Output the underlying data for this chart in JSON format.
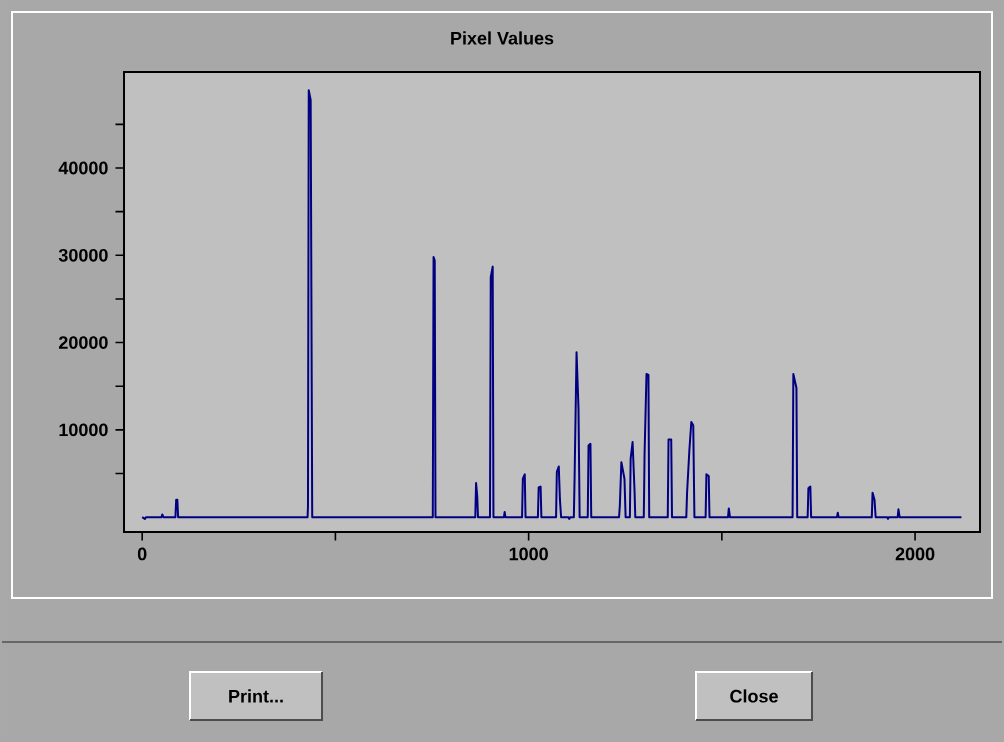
{
  "chart_data": {
    "type": "line",
    "title": "Pixel Values",
    "x": [
      0,
      7,
      10,
      50,
      52,
      55,
      86,
      88,
      91,
      93,
      428,
      429,
      431,
      436,
      440,
      752,
      754,
      757,
      759,
      862,
      864,
      867,
      869,
      900,
      902,
      907,
      909,
      936,
      938,
      940,
      983,
      985,
      990,
      992,
      1024,
      1026,
      1031,
      1033,
      1071,
      1073,
      1078,
      1081,
      1084,
      1103,
      1105,
      1108,
      1117,
      1119,
      1124,
      1129,
      1132,
      1153,
      1155,
      1160,
      1162,
      1234,
      1236,
      1240,
      1248,
      1251,
      1262,
      1264,
      1269,
      1274,
      1276,
      1298,
      1300,
      1305,
      1310,
      1312,
      1360,
      1362,
      1369,
      1371,
      1408,
      1410,
      1416,
      1421,
      1426,
      1429,
      1458,
      1460,
      1466,
      1468,
      1516,
      1518,
      1521,
      1683,
      1685,
      1693,
      1695,
      1722,
      1724,
      1729,
      1731,
      1798,
      1800,
      1802,
      1888,
      1890,
      1895,
      1898,
      1928,
      1930,
      1932,
      1955,
      1957,
      1960,
      2120
    ],
    "values": [
      0,
      -200,
      0,
      0,
      300,
      0,
      0,
      2000,
      2000,
      0,
      0,
      1200,
      48900,
      47800,
      0,
      0,
      29800,
      29400,
      0,
      0,
      3900,
      2400,
      0,
      0,
      27500,
      28700,
      0,
      0,
      600,
      0,
      0,
      4400,
      4900,
      0,
      0,
      3400,
      3500,
      0,
      0,
      5200,
      5800,
      2000,
      0,
      0,
      -200,
      0,
      0,
      4700,
      18900,
      12500,
      0,
      0,
      8200,
      8400,
      0,
      0,
      1300,
      6300,
      4400,
      0,
      0,
      6700,
      8600,
      3100,
      0,
      0,
      7200,
      16400,
      16300,
      0,
      0,
      8900,
      8900,
      0,
      0,
      2800,
      7700,
      10900,
      10500,
      0,
      0,
      4900,
      4700,
      0,
      0,
      1000,
      0,
      0,
      16400,
      14800,
      0,
      0,
      3300,
      3500,
      0,
      0,
      500,
      0,
      0,
      2800,
      2000,
      0,
      0,
      -200,
      0,
      0,
      900,
      0,
      0
    ],
    "color": "#000080",
    "xlim": [
      -47,
      2168
    ],
    "ylim": [
      -1700,
      51000
    ],
    "xticks": [
      0,
      {
        "value": 500,
        "label": null
      },
      1000,
      {
        "value": 1500,
        "label": null
      },
      2000
    ],
    "yticks": [
      {
        "value": 5000,
        "label": null
      },
      10000,
      {
        "value": 15000,
        "label": null
      },
      20000,
      {
        "value": 25000,
        "label": null
      },
      30000,
      {
        "value": 35000,
        "label": null
      },
      40000,
      {
        "value": 45000,
        "label": null
      }
    ],
    "annotations": [
      "Print...",
      "Close"
    ]
  }
}
